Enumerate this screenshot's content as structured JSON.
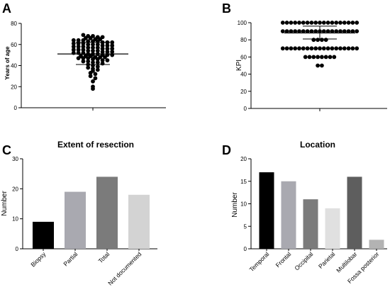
{
  "chart_data": [
    {
      "panel": "A",
      "type": "scatter",
      "ylabel": "Years of age",
      "ylim": [
        0,
        80
      ],
      "yticks": [
        "0",
        "20",
        "40",
        "60",
        "80"
      ],
      "values": [
        69,
        68,
        68,
        67,
        67,
        66,
        66,
        65,
        65,
        64,
        64,
        64,
        63,
        63,
        63,
        62,
        62,
        62,
        61,
        61,
        61,
        60,
        60,
        60,
        59,
        59,
        59,
        58,
        58,
        58,
        57,
        57,
        57,
        56,
        56,
        56,
        55,
        55,
        55,
        54,
        54,
        54,
        53,
        53,
        53,
        52,
        52,
        52,
        51,
        51,
        51,
        50,
        50,
        50,
        49,
        49,
        49,
        48,
        48,
        48,
        47,
        47,
        47,
        46,
        46,
        45,
        45,
        44,
        44,
        43,
        43,
        42,
        41,
        40,
        39,
        38,
        37,
        36,
        35,
        33,
        32,
        30,
        28,
        25,
        20,
        18
      ],
      "mean": 51,
      "sd_low": 41,
      "sd_high": 62
    },
    {
      "panel": "B",
      "type": "scatter",
      "ylabel": "KPI",
      "ylim": [
        0,
        100
      ],
      "yticks": [
        "0",
        "20",
        "40",
        "60",
        "80",
        "100"
      ],
      "levels": [
        {
          "value": 100,
          "count": 19
        },
        {
          "value": 90,
          "count": 19
        },
        {
          "value": 80,
          "count": 4
        },
        {
          "value": 70,
          "count": 19
        },
        {
          "value": 60,
          "count": 8
        },
        {
          "value": 50,
          "count": 2
        }
      ],
      "mean": 88,
      "sd_low": 81,
      "sd_high": 96
    },
    {
      "panel": "C",
      "type": "bar",
      "title": "Extent of resection",
      "ylabel": "Number",
      "ylim": [
        0,
        30
      ],
      "yticks": [
        "0",
        "10",
        "20",
        "30"
      ],
      "categories": [
        "Biopsy",
        "Partial",
        "Total",
        "Not documented"
      ],
      "values": [
        9,
        19,
        24,
        18
      ],
      "colors": [
        "#000000",
        "#a9a9b0",
        "#7b7b7b",
        "#d3d3d3"
      ]
    },
    {
      "panel": "D",
      "type": "bar",
      "title": "Location",
      "ylabel": "Number",
      "ylim": [
        0,
        20
      ],
      "yticks": [
        "0",
        "5",
        "10",
        "15",
        "20"
      ],
      "categories": [
        "Temporal",
        "Frontal",
        "Occipital",
        "Parietal",
        "Multilobar",
        "Fossa posterior"
      ],
      "values": [
        17,
        15,
        11,
        9,
        16,
        2
      ],
      "colors": [
        "#000000",
        "#a9a9b0",
        "#7b7b7b",
        "#e0e0e0",
        "#5e5e5e",
        "#b3b3b3"
      ]
    }
  ]
}
